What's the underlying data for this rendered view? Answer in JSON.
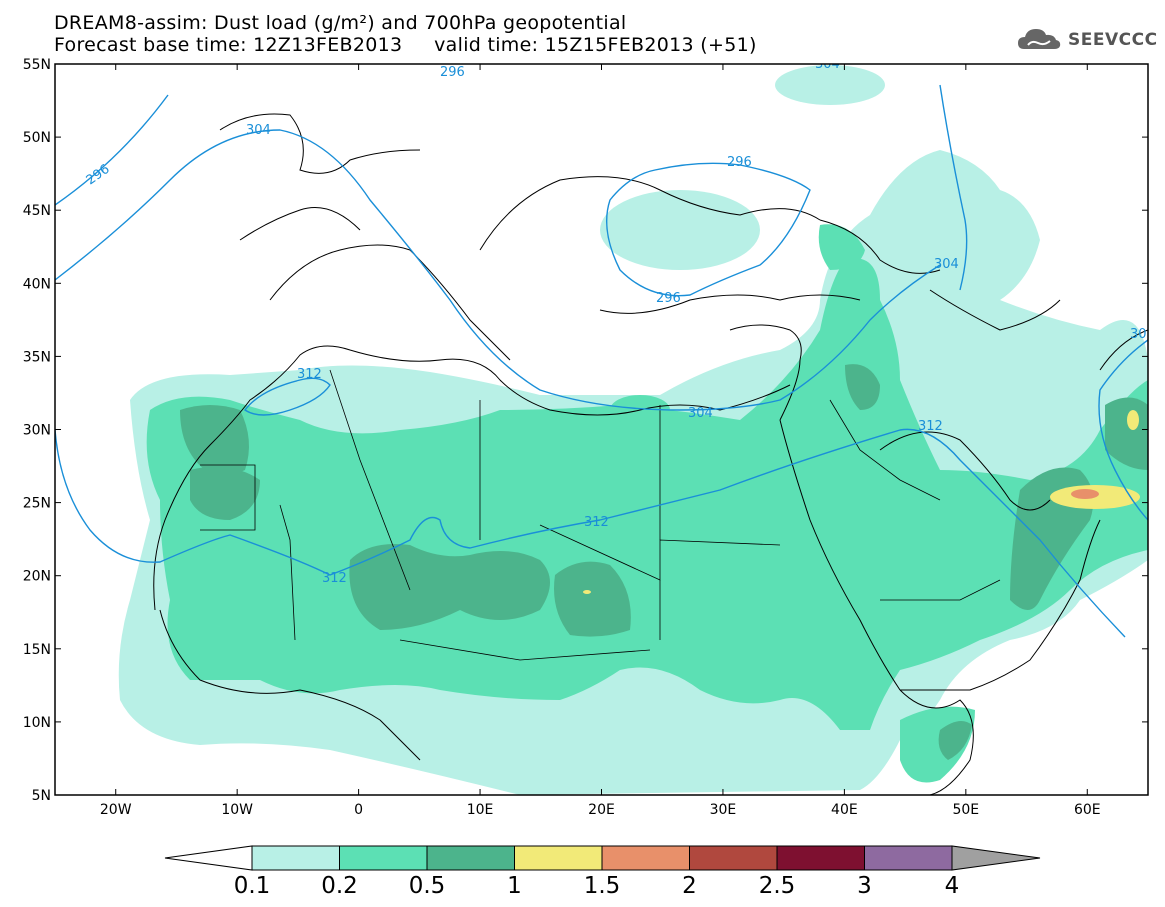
{
  "title": {
    "line1": "DREAM8-assim: Dust load (g/m²) and 700hPa geopotential",
    "line2": "Forecast base time: 12Z13FEB2013     valid time: 15Z15FEB2013 (+51)"
  },
  "brand": {
    "name": "SEEVCCC",
    "icon": "cloud-logo-icon"
  },
  "map": {
    "lon_range": [
      -25,
      65
    ],
    "lat_range": [
      5,
      55
    ],
    "lat_ticks": [
      "55N",
      "50N",
      "45N",
      "40N",
      "35N",
      "30N",
      "25N",
      "20N",
      "15N",
      "10N",
      "5N"
    ],
    "lon_ticks": [
      "20W",
      "10W",
      "0",
      "10E",
      "20E",
      "30E",
      "40E",
      "50E",
      "60E"
    ],
    "contour_labels": [
      "296",
      "304",
      "296",
      "312",
      "304",
      "312",
      "312",
      "312",
      "296",
      "304",
      "296",
      "304",
      "30"
    ],
    "contour_color": "#1a8fd8"
  },
  "colorbar": {
    "labels": [
      "0.1",
      "0.2",
      "0.5",
      "1",
      "1.5",
      "2",
      "2.5",
      "3",
      "4"
    ],
    "colors": [
      "#b8f0e6",
      "#5ce0b4",
      "#4cb48c",
      "#f2ea78",
      "#e8906a",
      "#b0483e",
      "#7e1030",
      "#8e6aa0",
      "#a0a0a0"
    ]
  }
}
